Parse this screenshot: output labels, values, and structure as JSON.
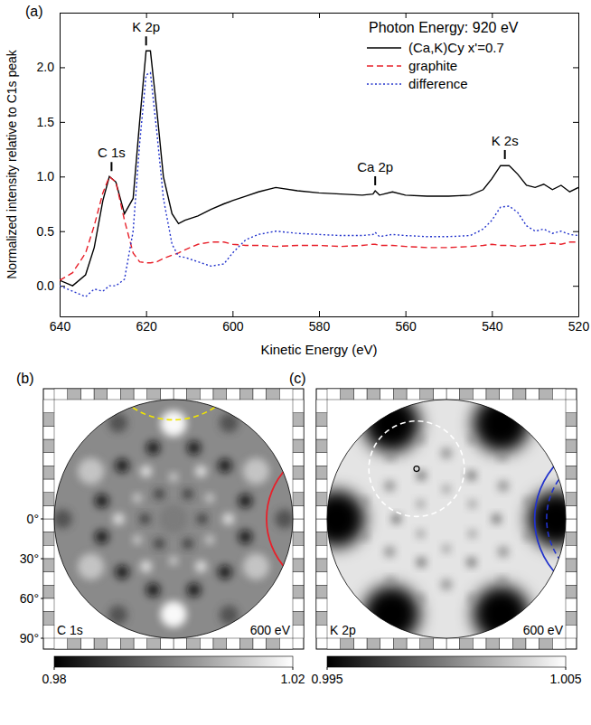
{
  "chart_data": [
    {
      "type": "line",
      "panel_label": "(a)",
      "x_label": "Kinetic Energy (eV)",
      "y_label": "Normalized intensity relative to C1s peak",
      "legend_title": "Photon Energy: 920 eV",
      "legend": "upper right",
      "xlim": [
        640,
        520
      ],
      "xticks": [
        640,
        620,
        600,
        580,
        560,
        540,
        520
      ],
      "ylim": [
        -0.28,
        2.5
      ],
      "yticks": [
        {
          "value": 0,
          "label": "0.0"
        },
        {
          "value": 0.5,
          "label": "0.5"
        },
        {
          "value": 1,
          "label": "1.0"
        },
        {
          "value": 1.5,
          "label": "1.5"
        },
        {
          "value": 2,
          "label": "2.0"
        }
      ],
      "x": [
        640,
        637,
        634,
        632,
        630,
        628.5,
        627,
        625,
        623,
        621.5,
        620,
        619,
        617.5,
        616,
        614,
        612.5,
        611,
        608,
        605,
        602,
        600,
        597,
        594,
        590,
        585,
        580,
        575,
        570,
        567.5,
        567,
        566,
        563,
        560,
        555,
        550,
        545,
        542,
        540,
        538,
        536,
        534,
        532,
        530,
        528,
        526,
        524,
        522,
        520
      ],
      "series": [
        {
          "name": "(Ca,K)Cy x'=0.7",
          "color": "#000000",
          "line_style": "solid",
          "values": [
            0.05,
            0.0,
            0.1,
            0.35,
            0.78,
            1.0,
            0.95,
            0.66,
            0.8,
            1.5,
            2.15,
            2.15,
            1.6,
            1.0,
            0.66,
            0.57,
            0.6,
            0.64,
            0.7,
            0.75,
            0.78,
            0.82,
            0.86,
            0.9,
            0.87,
            0.85,
            0.84,
            0.83,
            0.84,
            0.87,
            0.83,
            0.86,
            0.83,
            0.82,
            0.82,
            0.83,
            0.88,
            0.98,
            1.1,
            1.1,
            1.02,
            0.92,
            0.9,
            0.93,
            0.88,
            0.92,
            0.86,
            0.9
          ]
        },
        {
          "name": "graphite",
          "color": "#e8202a",
          "line_style": "dashed",
          "values": [
            0.05,
            0.12,
            0.3,
            0.55,
            0.85,
            1.0,
            0.95,
            0.6,
            0.3,
            0.22,
            0.21,
            0.21,
            0.22,
            0.25,
            0.28,
            0.3,
            0.33,
            0.38,
            0.4,
            0.4,
            0.38,
            0.37,
            0.37,
            0.36,
            0.37,
            0.37,
            0.36,
            0.37,
            0.38,
            0.38,
            0.37,
            0.37,
            0.36,
            0.35,
            0.35,
            0.36,
            0.37,
            0.38,
            0.37,
            0.37,
            0.36,
            0.37,
            0.37,
            0.38,
            0.39,
            0.38,
            0.4,
            0.4
          ]
        },
        {
          "name": "difference",
          "color": "#2233cc",
          "line_style": "dotted",
          "values": [
            0.0,
            -0.05,
            -0.1,
            -0.03,
            -0.05,
            0.0,
            0.0,
            0.06,
            0.5,
            1.3,
            1.93,
            1.95,
            1.4,
            0.8,
            0.38,
            0.27,
            0.26,
            0.22,
            0.18,
            0.2,
            0.3,
            0.42,
            0.47,
            0.5,
            0.48,
            0.47,
            0.46,
            0.46,
            0.47,
            0.49,
            0.45,
            0.47,
            0.46,
            0.45,
            0.45,
            0.46,
            0.52,
            0.6,
            0.72,
            0.73,
            0.67,
            0.55,
            0.5,
            0.52,
            0.48,
            0.5,
            0.47,
            0.46
          ]
        }
      ],
      "annotations": [
        {
          "text": "C 1s",
          "x": 628,
          "y": 1.05
        },
        {
          "text": "K 2p",
          "x": 620,
          "y": 2.2
        },
        {
          "text": "Ca 2p",
          "x": 567,
          "y": 0.92
        },
        {
          "text": "K 2s",
          "x": 537,
          "y": 1.16
        }
      ]
    },
    {
      "type": "image",
      "panel_label": "(b)",
      "title": "C 1s",
      "subtitle": "600 eV",
      "polar_lim": [
        0,
        90
      ],
      "polar_ticks": [
        {
          "value": 0,
          "label": "0°"
        },
        {
          "value": 30,
          "label": "30°"
        },
        {
          "value": 60,
          "label": "60°"
        },
        {
          "value": 90,
          "label": "90°"
        }
      ],
      "colorbar": {
        "lim": [
          0.98,
          1.02
        ],
        "ticks": [
          0.98,
          1.02
        ]
      }
    },
    {
      "type": "image",
      "panel_label": "(c)",
      "title": "K 2p",
      "subtitle": "600 eV",
      "polar_lim": [
        0,
        90
      ],
      "colorbar": {
        "lim": [
          0.995,
          1.005
        ],
        "ticks": [
          0.995,
          1.005
        ]
      }
    }
  ]
}
